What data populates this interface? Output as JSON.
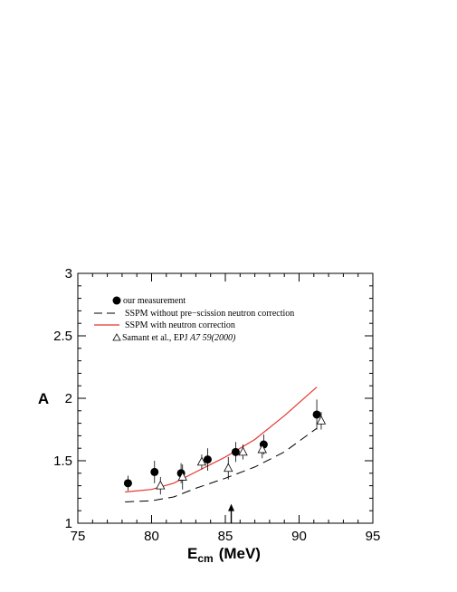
{
  "chart_data": {
    "type": "scatter",
    "title": "",
    "xlabel_main": "E",
    "xlabel_sub": "cm",
    "xlabel_unit": "(MeV)",
    "ylabel": "A",
    "xlim": [
      75,
      95
    ],
    "ylim": [
      1,
      3
    ],
    "x_ticks": [
      "75",
      "80",
      "85",
      "90",
      "95"
    ],
    "y_ticks": [
      "1",
      "1.5",
      "2",
      "2.5",
      "3"
    ],
    "legend": {
      "placement": "top-left",
      "entries": [
        {
          "key": "measurement",
          "label": "our measurement"
        },
        {
          "key": "ssmp_dashed",
          "label": "SSPM without pre−scission neutron correction"
        },
        {
          "key": "sspm_red",
          "label": "SSPM with neutron correction"
        },
        {
          "key": "samant",
          "label": "Samant et al.,  EPJ ",
          "label_italic": "A7 59(2000)"
        }
      ]
    },
    "series": [
      {
        "key": "measurement",
        "marker": "filled-circle",
        "color": "#000000",
        "points": [
          {
            "x": 78.4,
            "y": 1.32,
            "err": 0.06
          },
          {
            "x": 80.2,
            "y": 1.41,
            "err": 0.09
          },
          {
            "x": 82.0,
            "y": 1.4,
            "err": 0.08
          },
          {
            "x": 83.8,
            "y": 1.51,
            "err": 0.09
          },
          {
            "x": 85.7,
            "y": 1.57,
            "err": 0.08
          },
          {
            "x": 87.6,
            "y": 1.63,
            "err": 0.08
          },
          {
            "x": 91.2,
            "y": 1.87,
            "err": 0.12
          }
        ]
      },
      {
        "key": "samant",
        "marker": "open-triangle",
        "color": "#000000",
        "points": [
          {
            "x": 80.6,
            "y": 1.3,
            "err": 0.07
          },
          {
            "x": 82.1,
            "y": 1.37,
            "err": 0.1
          },
          {
            "x": 83.4,
            "y": 1.49,
            "err": 0.06
          },
          {
            "x": 85.2,
            "y": 1.44,
            "err": 0.09
          },
          {
            "x": 86.2,
            "y": 1.57,
            "err": 0.06
          },
          {
            "x": 87.5,
            "y": 1.59,
            "err": 0.07
          },
          {
            "x": 91.5,
            "y": 1.82,
            "err": 0.07
          }
        ]
      },
      {
        "key": "ssmp_dashed",
        "line": "dashed",
        "color": "#000000",
        "points": [
          {
            "x": 78.2,
            "y": 1.17
          },
          {
            "x": 80.0,
            "y": 1.18
          },
          {
            "x": 81.5,
            "y": 1.21
          },
          {
            "x": 83.0,
            "y": 1.28
          },
          {
            "x": 85.0,
            "y": 1.36
          },
          {
            "x": 87.0,
            "y": 1.45
          },
          {
            "x": 89.0,
            "y": 1.57
          },
          {
            "x": 91.2,
            "y": 1.76
          }
        ]
      },
      {
        "key": "sspm_red",
        "line": "solid",
        "color": "#e8352e",
        "points": [
          {
            "x": 78.2,
            "y": 1.25
          },
          {
            "x": 80.0,
            "y": 1.27
          },
          {
            "x": 81.5,
            "y": 1.32
          },
          {
            "x": 83.0,
            "y": 1.41
          },
          {
            "x": 85.0,
            "y": 1.53
          },
          {
            "x": 87.0,
            "y": 1.67
          },
          {
            "x": 89.0,
            "y": 1.86
          },
          {
            "x": 91.2,
            "y": 2.09
          }
        ]
      }
    ],
    "arrow_marker": {
      "x": 85.4,
      "y_from": 1.0,
      "y_to": 1.14
    }
  }
}
